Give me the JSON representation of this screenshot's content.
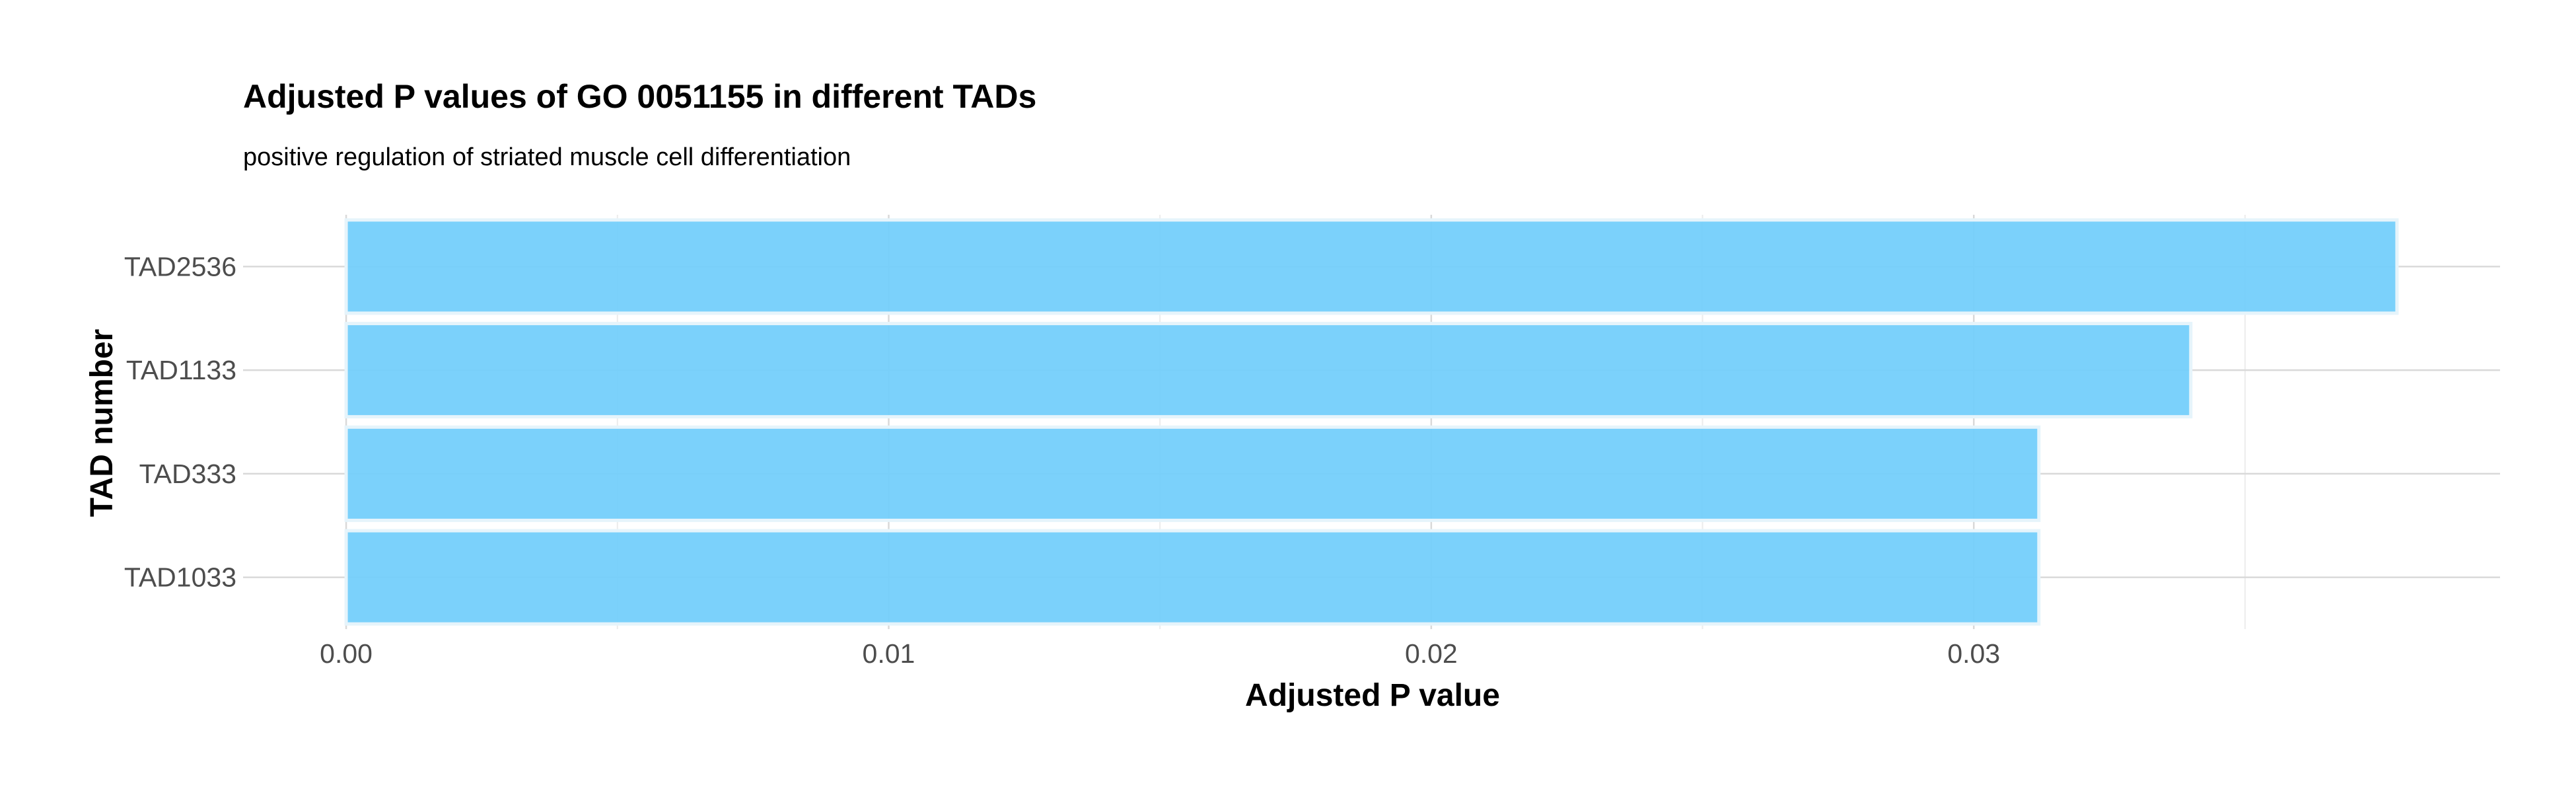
{
  "chart_data": {
    "type": "bar",
    "orientation": "horizontal",
    "title": "Adjusted P values of GO 0051155 in different TADs",
    "subtitle": "positive regulation of striated muscle cell differentiation",
    "xlabel": "Adjusted P value",
    "ylabel": "TAD number",
    "categories": [
      "TAD2536",
      "TAD1133",
      "TAD333",
      "TAD1033"
    ],
    "values": [
      0.0378,
      0.034,
      0.0312,
      0.0312
    ],
    "xlim": [
      -0.0019,
      0.0397
    ],
    "xticks": [
      0.0,
      0.01,
      0.02,
      0.03
    ],
    "xtick_labels": [
      "0.00",
      "0.01",
      "0.02",
      "0.03"
    ],
    "grid": true,
    "legend": "none",
    "colors": {
      "bar_fill": "#74cffb",
      "bar_stroke": "#e6f4fb",
      "grid_major": "#d9d9d9",
      "grid_minor": "#ececec"
    }
  }
}
